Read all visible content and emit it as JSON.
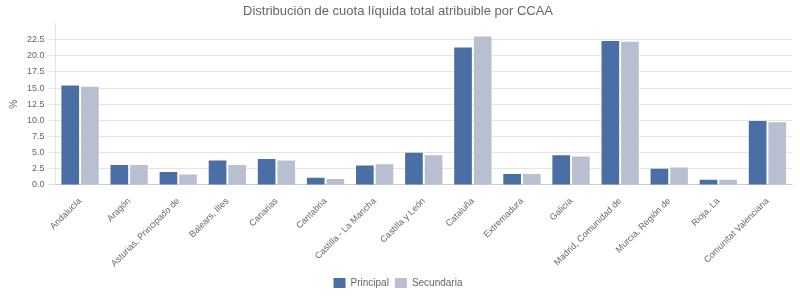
{
  "chart_data": {
    "type": "bar",
    "title": "Distribución de cuota líquida total atribuible por CCAA",
    "ylabel": "%",
    "categories": [
      "Andalucía",
      "Aragón",
      "Asturias, Principado de",
      "Balears, Illes",
      "Canarias",
      "Cantabria",
      "Castilla - La Mancha",
      "Castilla y León",
      "Cataluña",
      "Extremadura",
      "Galicia",
      "Madrid, Comunidad de",
      "Murcia, Región de",
      "Rioja, La",
      "Comunitat Valenciana"
    ],
    "series": [
      {
        "name": "Principal",
        "color": "#4a6fa5",
        "values": [
          15.4,
          3.1,
          2.0,
          3.8,
          4.0,
          1.1,
          3.0,
          5.0,
          21.3,
          1.7,
          4.6,
          22.3,
          2.5,
          0.8,
          9.9
        ]
      },
      {
        "name": "Secundaria",
        "color": "#b8bfd0",
        "values": [
          15.2,
          3.1,
          1.6,
          3.1,
          3.8,
          0.9,
          3.2,
          4.6,
          23.0,
          1.7,
          4.4,
          22.2,
          2.7,
          0.8,
          9.7
        ]
      }
    ],
    "ylim": [
      0,
      25
    ],
    "yticks": [
      {
        "value": 0,
        "label": "0.0"
      },
      2.5,
      {
        "value": 5,
        "label": "5.0"
      },
      7.5,
      {
        "value": 10,
        "label": "10.0"
      },
      12.5,
      {
        "value": 15,
        "label": "15.0"
      },
      17.5,
      {
        "value": 20,
        "label": "20.0"
      },
      22.5
    ],
    "grid": true,
    "legend": "bottom"
  }
}
